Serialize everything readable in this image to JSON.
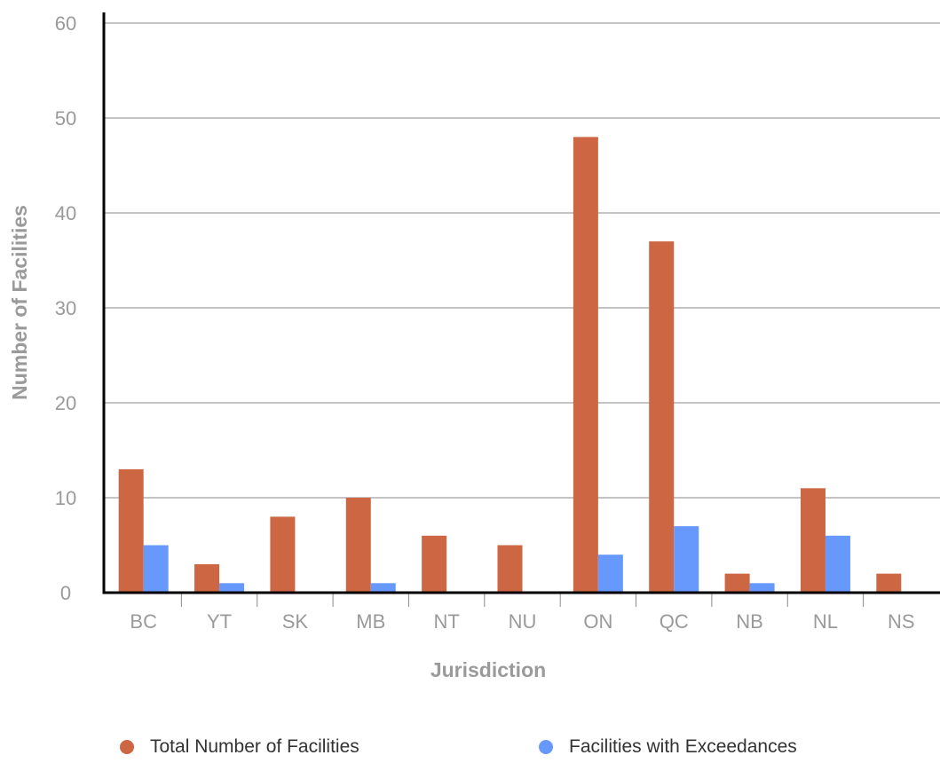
{
  "chart_data": {
    "type": "bar",
    "xlabel": "Jurisdiction",
    "ylabel": "Number of Facilities",
    "ylim": [
      0,
      60
    ],
    "yticks": [
      0,
      10,
      20,
      30,
      40,
      50,
      60
    ],
    "grid": true,
    "legend_position": "bottom",
    "categories": [
      "BC",
      "YT",
      "SK",
      "MB",
      "NT",
      "NU",
      "ON",
      "QC",
      "NB",
      "NL",
      "NS"
    ],
    "series": [
      {
        "name": "Total Number of Facilities",
        "color": "#cd6642",
        "values": [
          13,
          3,
          8,
          10,
          6,
          5,
          48,
          37,
          2,
          11,
          2
        ]
      },
      {
        "name": "Facilities with Exceedances",
        "color": "#6699fb",
        "values": [
          5,
          1,
          0,
          1,
          0,
          0,
          4,
          7,
          1,
          6,
          0
        ]
      }
    ]
  }
}
